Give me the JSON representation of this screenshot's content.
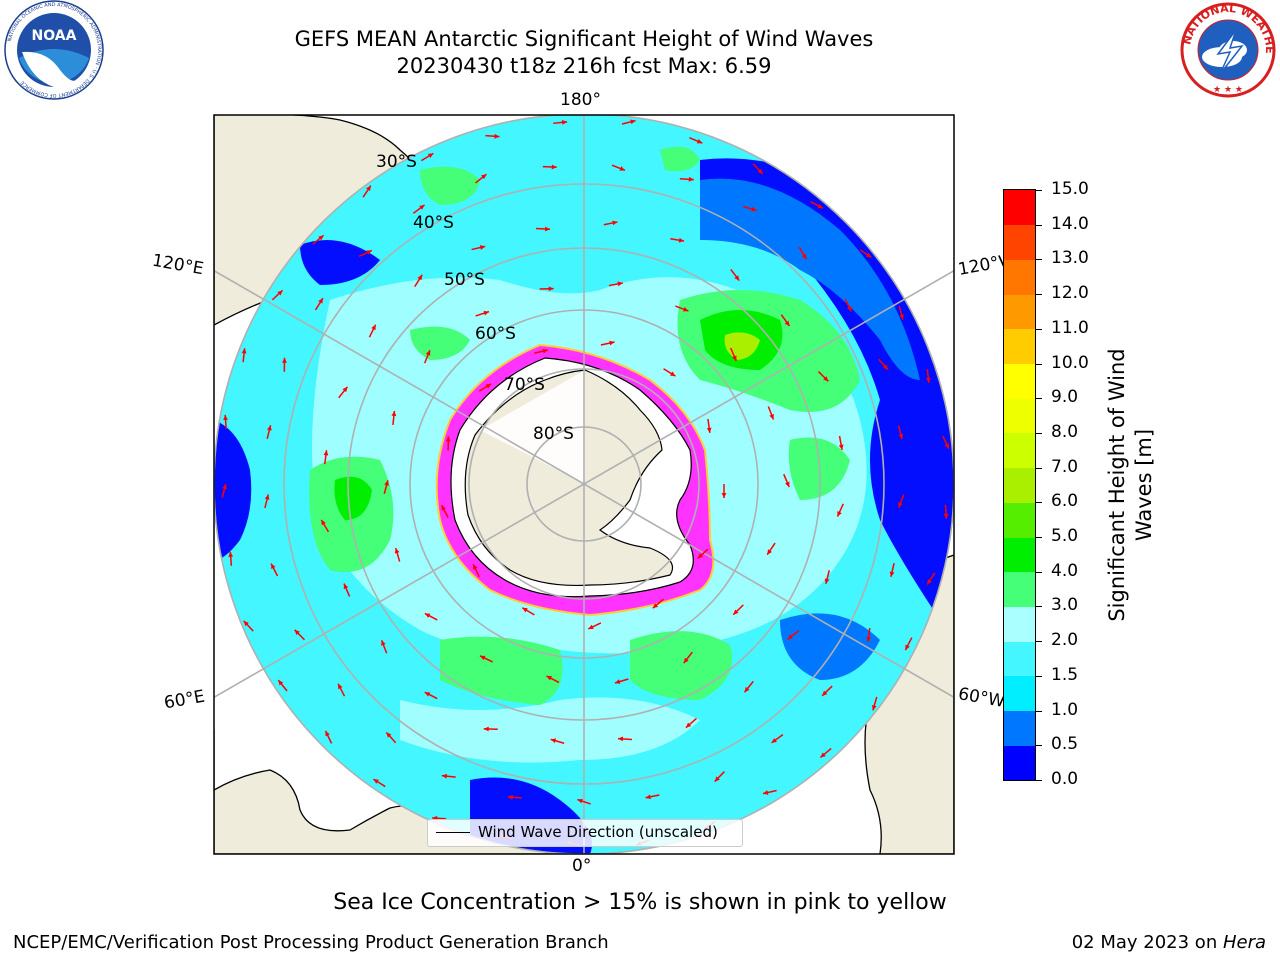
{
  "title": {
    "line1": "GEFS MEAN Antarctic Significant Height of Wind Waves",
    "line2": "20230430 t18z 216h fcst   Max: 6.59"
  },
  "map": {
    "projection": "south-polar-stereographic",
    "longitude_labels": {
      "top": "180°",
      "bottom": "0°",
      "left_upper": "120°E",
      "left_lower": "60°E",
      "right_upper": "120°W",
      "right_lower": "60°W"
    },
    "latitude_labels": [
      "30°S",
      "40°S",
      "50°S",
      "60°S",
      "70°S",
      "80°S"
    ],
    "land_color": "#efecdc",
    "ice_color_range": [
      "#ff33ff",
      "#ffff33"
    ],
    "legend_label": "Wind Wave Direction (unscaled)"
  },
  "colorbar": {
    "label": "Significant Height of Wind Waves [m]",
    "ticks": [
      "0.0",
      "0.5",
      "1.0",
      "1.5",
      "2.0",
      "3.0",
      "4.0",
      "5.0",
      "6.0",
      "7.0",
      "8.0",
      "9.0",
      "10.0",
      "11.0",
      "12.0",
      "13.0",
      "14.0",
      "15.0"
    ],
    "colors": [
      "#0000ff",
      "#0077ff",
      "#00eeff",
      "#44f6ff",
      "#aaffff",
      "#44ff77",
      "#00ee00",
      "#55ee00",
      "#aaee00",
      "#ccff00",
      "#eeff00",
      "#ffff00",
      "#ffcc00",
      "#ff9900",
      "#ff7700",
      "#ff4400",
      "#ff0000"
    ]
  },
  "note": "Sea Ice Concentration > 15% is shown in pink to yellow",
  "footer": {
    "left": "NCEP/EMC/Verification Post Processing Product Generation Branch",
    "right_date": "02 May 2023 on ",
    "right_host": "Hera"
  },
  "logos": {
    "noaa_text": "NOAA",
    "nws_text": "NATIONAL WEATHER SERVICE"
  }
}
